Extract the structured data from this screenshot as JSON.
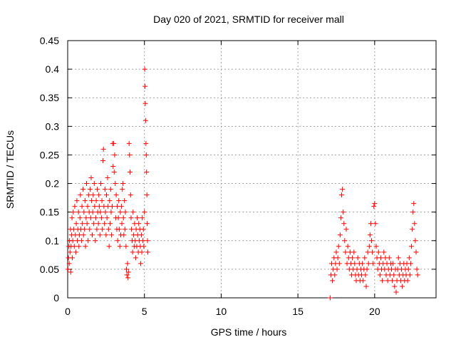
{
  "chart_data": {
    "type": "scatter",
    "title": "Day 020 of 2021, SRMTID for receiver mall",
    "xlabel": "GPS time / hours",
    "ylabel": "SRMTID / TECUs",
    "xlim": [
      0,
      24
    ],
    "ylim": [
      0,
      0.45
    ],
    "xticks": [
      0,
      5,
      10,
      15,
      20
    ],
    "yticks": [
      0,
      0.05,
      0.1,
      0.15,
      0.2,
      0.25,
      0.3,
      0.35,
      0.4,
      0.45
    ],
    "ytick_labels": [
      "0",
      "0.05",
      "0.1",
      "0.15",
      "0.2",
      "0.25",
      "0.3",
      "0.35",
      "0.4",
      "0.45"
    ],
    "grid": true,
    "marker": "+",
    "color": "#ff0000",
    "series": [
      {
        "name": "",
        "points": [
          [
            0.02,
            0.05
          ],
          [
            0.05,
            0.07
          ],
          [
            0.08,
            0.09
          ],
          [
            0.1,
            0.06
          ],
          [
            0.12,
            0.1
          ],
          [
            0.15,
            0.08
          ],
          [
            0.18,
            0.12
          ],
          [
            0.2,
            0.045
          ],
          [
            0.22,
            0.09
          ],
          [
            0.25,
            0.11
          ],
          [
            0.28,
            0.14
          ],
          [
            0.3,
            0.07
          ],
          [
            0.33,
            0.1
          ],
          [
            0.36,
            0.15
          ],
          [
            0.4,
            0.12
          ],
          [
            0.43,
            0.09
          ],
          [
            0.46,
            0.16
          ],
          [
            0.5,
            0.11
          ],
          [
            0.53,
            0.08
          ],
          [
            0.56,
            0.13
          ],
          [
            0.6,
            0.17
          ],
          [
            0.63,
            0.1
          ],
          [
            0.66,
            0.12
          ],
          [
            0.7,
            0.15
          ],
          [
            0.73,
            0.09
          ],
          [
            0.76,
            0.11
          ],
          [
            0.8,
            0.14
          ],
          [
            0.83,
            0.18
          ],
          [
            0.86,
            0.12
          ],
          [
            0.9,
            0.1
          ],
          [
            0.93,
            0.16
          ],
          [
            0.96,
            0.13
          ],
          [
            1.0,
            0.19
          ],
          [
            1.03,
            0.11
          ],
          [
            1.06,
            0.15
          ],
          [
            1.1,
            0.12
          ],
          [
            1.13,
            0.17
          ],
          [
            1.16,
            0.09
          ],
          [
            1.2,
            0.14
          ],
          [
            1.23,
            0.2
          ],
          [
            1.26,
            0.13
          ],
          [
            1.3,
            0.16
          ],
          [
            1.33,
            0.1
          ],
          [
            1.36,
            0.18
          ],
          [
            1.4,
            0.15
          ],
          [
            1.43,
            0.12
          ],
          [
            1.46,
            0.19
          ],
          [
            1.5,
            0.14
          ],
          [
            1.53,
            0.21
          ],
          [
            1.56,
            0.17
          ],
          [
            1.6,
            0.11
          ],
          [
            1.63,
            0.15
          ],
          [
            1.66,
            0.18
          ],
          [
            1.7,
            0.13
          ],
          [
            1.73,
            0.2
          ],
          [
            1.76,
            0.16
          ],
          [
            1.8,
            0.1
          ],
          [
            1.83,
            0.14
          ],
          [
            1.86,
            0.17
          ],
          [
            1.9,
            0.12
          ],
          [
            1.93,
            0.19
          ],
          [
            1.96,
            0.15
          ],
          [
            2.0,
            0.13
          ],
          [
            2.03,
            0.18
          ],
          [
            2.06,
            0.16
          ],
          [
            2.1,
            0.11
          ],
          [
            2.13,
            0.15
          ],
          [
            2.16,
            0.2
          ],
          [
            2.2,
            0.14
          ],
          [
            2.23,
            0.17
          ],
          [
            2.26,
            0.12
          ],
          [
            2.3,
            0.24
          ],
          [
            2.33,
            0.26
          ],
          [
            2.36,
            0.16
          ],
          [
            2.4,
            0.13
          ],
          [
            2.43,
            0.19
          ],
          [
            2.46,
            0.15
          ],
          [
            2.5,
            0.11
          ],
          [
            2.53,
            0.18
          ],
          [
            2.56,
            0.14
          ],
          [
            2.6,
            0.21
          ],
          [
            2.63,
            0.16
          ],
          [
            2.66,
            0.12
          ],
          [
            2.7,
            0.09
          ],
          [
            2.73,
            0.17
          ],
          [
            2.76,
            0.13
          ],
          [
            2.8,
            0.19
          ],
          [
            2.83,
            0.15
          ],
          [
            2.86,
            0.11
          ],
          [
            2.9,
            0.16
          ],
          [
            2.93,
            0.27
          ],
          [
            2.96,
            0.23
          ],
          [
            3.0,
            0.27
          ],
          [
            3.03,
            0.22
          ],
          [
            3.06,
            0.25
          ],
          [
            3.1,
            0.2
          ],
          [
            3.13,
            0.14
          ],
          [
            3.16,
            0.18
          ],
          [
            3.2,
            0.12
          ],
          [
            3.23,
            0.16
          ],
          [
            3.26,
            0.1
          ],
          [
            3.3,
            0.14
          ],
          [
            3.33,
            0.17
          ],
          [
            3.36,
            0.12
          ],
          [
            3.4,
            0.09
          ],
          [
            3.43,
            0.15
          ],
          [
            3.46,
            0.11
          ],
          [
            3.5,
            0.16
          ],
          [
            3.53,
            0.13
          ],
          [
            3.56,
            0.19
          ],
          [
            3.6,
            0.2
          ],
          [
            3.63,
            0.14
          ],
          [
            3.66,
            0.11
          ],
          [
            3.7,
            0.17
          ],
          [
            3.73,
            0.12
          ],
          [
            3.76,
            0.15
          ],
          [
            3.8,
            0.09
          ],
          [
            3.83,
            0.05
          ],
          [
            3.86,
            0.04
          ],
          [
            3.9,
            0.06
          ],
          [
            3.93,
            0.035
          ],
          [
            3.96,
            0.045
          ],
          [
            4.0,
            0.27
          ],
          [
            4.03,
            0.25
          ],
          [
            4.06,
            0.22
          ],
          [
            4.1,
            0.18
          ],
          [
            4.13,
            0.14
          ],
          [
            4.16,
            0.12
          ],
          [
            4.2,
            0.1
          ],
          [
            4.23,
            0.08
          ],
          [
            4.26,
            0.15
          ],
          [
            4.3,
            0.11
          ],
          [
            4.33,
            0.09
          ],
          [
            4.36,
            0.13
          ],
          [
            4.4,
            0.1
          ],
          [
            4.43,
            0.07
          ],
          [
            4.46,
            0.12
          ],
          [
            4.5,
            0.09
          ],
          [
            4.53,
            0.14
          ],
          [
            4.56,
            0.11
          ],
          [
            4.6,
            0.08
          ],
          [
            4.63,
            0.13
          ],
          [
            4.66,
            0.1
          ],
          [
            4.7,
            0.12
          ],
          [
            4.73,
            0.09
          ],
          [
            4.76,
            0.06
          ],
          [
            4.8,
            0.11
          ],
          [
            4.83,
            0.08
          ],
          [
            4.86,
            0.14
          ],
          [
            4.9,
            0.1
          ],
          [
            4.93,
            0.12
          ],
          [
            4.96,
            0.09
          ],
          [
            5.0,
            0.15
          ],
          [
            5.02,
            0.4
          ],
          [
            5.04,
            0.37
          ],
          [
            5.06,
            0.34
          ],
          [
            5.08,
            0.31
          ],
          [
            5.1,
            0.27
          ],
          [
            5.12,
            0.25
          ],
          [
            5.14,
            0.22
          ],
          [
            5.16,
            0.18
          ],
          [
            5.18,
            0.13
          ],
          [
            5.2,
            0.1
          ],
          [
            5.22,
            0.08
          ],
          [
            17.1,
            0.0
          ],
          [
            17.15,
            0.04
          ],
          [
            17.2,
            0.06
          ],
          [
            17.25,
            0.03
          ],
          [
            17.3,
            0.05
          ],
          [
            17.35,
            0.07
          ],
          [
            17.4,
            0.04
          ],
          [
            17.45,
            0.06
          ],
          [
            17.5,
            0.08
          ],
          [
            17.55,
            0.05
          ],
          [
            17.6,
            0.07
          ],
          [
            17.65,
            0.09
          ],
          [
            17.7,
            0.06
          ],
          [
            17.75,
            0.11
          ],
          [
            17.8,
            0.14
          ],
          [
            17.85,
            0.18
          ],
          [
            17.9,
            0.19
          ],
          [
            17.95,
            0.15
          ],
          [
            18.0,
            0.13
          ],
          [
            18.05,
            0.1
          ],
          [
            18.1,
            0.08
          ],
          [
            18.15,
            0.12
          ],
          [
            18.2,
            0.06
          ],
          [
            18.25,
            0.09
          ],
          [
            18.3,
            0.07
          ],
          [
            18.35,
            0.05
          ],
          [
            18.4,
            0.08
          ],
          [
            18.45,
            0.06
          ],
          [
            18.5,
            0.04
          ],
          [
            18.55,
            0.07
          ],
          [
            18.6,
            0.05
          ],
          [
            18.65,
            0.08
          ],
          [
            18.7,
            0.06
          ],
          [
            18.75,
            0.04
          ],
          [
            18.8,
            0.03
          ],
          [
            18.85,
            0.05
          ],
          [
            18.9,
            0.07
          ],
          [
            18.95,
            0.04
          ],
          [
            19.0,
            0.06
          ],
          [
            19.05,
            0.03
          ],
          [
            19.1,
            0.05
          ],
          [
            19.15,
            0.04
          ],
          [
            19.2,
            0.06
          ],
          [
            19.25,
            0.03
          ],
          [
            19.3,
            0.05
          ],
          [
            19.35,
            0.07
          ],
          [
            19.4,
            0.04
          ],
          [
            19.45,
            0.02
          ],
          [
            19.5,
            0.05
          ],
          [
            19.55,
            0.08
          ],
          [
            19.6,
            0.06
          ],
          [
            19.65,
            0.09
          ],
          [
            19.7,
            0.11
          ],
          [
            19.75,
            0.13
          ],
          [
            19.8,
            0.1
          ],
          [
            19.85,
            0.08
          ],
          [
            19.9,
            0.06
          ],
          [
            19.95,
            0.16
          ],
          [
            20.0,
            0.165
          ],
          [
            20.05,
            0.13
          ],
          [
            20.1,
            0.09
          ],
          [
            20.15,
            0.07
          ],
          [
            20.2,
            0.05
          ],
          [
            20.25,
            0.08
          ],
          [
            20.3,
            0.06
          ],
          [
            20.35,
            0.04
          ],
          [
            20.4,
            0.07
          ],
          [
            20.45,
            0.05
          ],
          [
            20.5,
            0.03
          ],
          [
            20.55,
            0.06
          ],
          [
            20.6,
            0.08
          ],
          [
            20.65,
            0.05
          ],
          [
            20.7,
            0.07
          ],
          [
            20.75,
            0.04
          ],
          [
            20.8,
            0.06
          ],
          [
            20.85,
            0.03
          ],
          [
            20.9,
            0.05
          ],
          [
            20.95,
            0.07
          ],
          [
            21.0,
            0.04
          ],
          [
            21.05,
            0.06
          ],
          [
            21.1,
            0.05
          ],
          [
            21.15,
            0.03
          ],
          [
            21.2,
            0.06
          ],
          [
            21.25,
            0.04
          ],
          [
            21.3,
            0.02
          ],
          [
            21.35,
            0.05
          ],
          [
            21.4,
            0.01
          ],
          [
            21.45,
            0.03
          ],
          [
            21.5,
            0.05
          ],
          [
            21.55,
            0.07
          ],
          [
            21.6,
            0.04
          ],
          [
            21.65,
            0.06
          ],
          [
            21.7,
            0.03
          ],
          [
            21.75,
            0.05
          ],
          [
            21.8,
            0.02
          ],
          [
            21.85,
            0.04
          ],
          [
            21.9,
            0.06
          ],
          [
            21.95,
            0.03
          ],
          [
            22.0,
            0.05
          ],
          [
            22.05,
            0.04
          ],
          [
            22.1,
            0.06
          ],
          [
            22.15,
            0.03
          ],
          [
            22.2,
            0.05
          ],
          [
            22.25,
            0.07
          ],
          [
            22.3,
            0.04
          ],
          [
            22.35,
            0.06
          ],
          [
            22.4,
            0.09
          ],
          [
            22.45,
            0.12
          ],
          [
            22.5,
            0.15
          ],
          [
            22.55,
            0.165
          ],
          [
            22.6,
            0.13
          ],
          [
            22.65,
            0.1
          ],
          [
            22.7,
            0.08
          ],
          [
            22.75,
            0.05
          ],
          [
            22.8,
            0.04
          ]
        ]
      }
    ]
  }
}
